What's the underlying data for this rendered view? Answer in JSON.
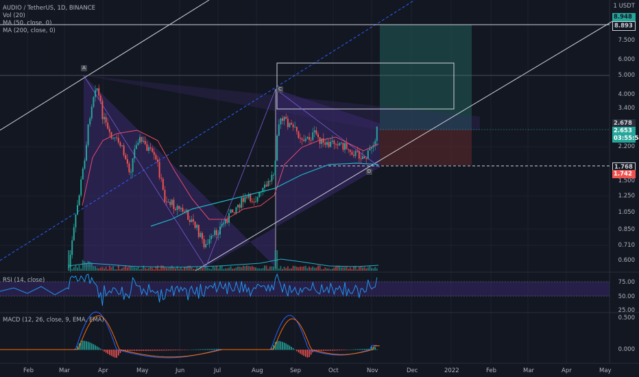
{
  "header": {
    "title": "AUDIO / TetherUS, 1D, BINANCE",
    "vol": "Vol (20)",
    "ma50": "MA (50, close, 0)",
    "ma200": "MA (200, close, 0)"
  },
  "panes": {
    "rsi_label": "RSI (14, close)",
    "macd_label": "MACD (12, 26, close, 9, EMA, EMA)"
  },
  "price_axis": {
    "unit": "1 USDT",
    "ticks": [
      "7.500",
      "6.000",
      "5.000",
      "4.000",
      "3.400",
      "2.200",
      "1.500",
      "1.250",
      "1.050",
      "0.850",
      "0.710",
      "0.600"
    ]
  },
  "price_tags": [
    {
      "value": "8.948",
      "bg": "#26a69a",
      "fg": "#131722"
    },
    {
      "value": "8.893",
      "bg": "#131722",
      "fg": "#d1d4dc",
      "border": "#d1d4dc"
    },
    {
      "value": "2.678",
      "bg": "#2a2e39",
      "fg": "#d1d4dc"
    },
    {
      "value": "2.653",
      "bg": "#26a69a",
      "fg": "#ffffff"
    },
    {
      "value": "03:55:54",
      "bg": "#26a69a",
      "fg": "#ffffff"
    },
    {
      "value": "1.768",
      "bg": "#131722",
      "fg": "#d1d4dc",
      "border": "#d1d4dc"
    },
    {
      "value": "1.742",
      "bg": "#ef5350",
      "fg": "#ffffff"
    }
  ],
  "rsi_axis": [
    "75.00",
    "50.00",
    "25.00"
  ],
  "macd_axis": [
    "0.500",
    "0.000"
  ],
  "time_axis": [
    "Feb",
    "Mar",
    "Apr",
    "May",
    "Jun",
    "Jul",
    "Aug",
    "Sep",
    "Oct",
    "Nov",
    "Dec",
    "2022",
    "Feb",
    "Mar",
    "Apr",
    "May"
  ],
  "markers": [
    "A",
    "C",
    "D"
  ],
  "colors": {
    "up": "#26a69a",
    "down": "#ef5350",
    "ma50": "#e84c6b",
    "ma200": "#20b4c8",
    "rsi": "#2196f3",
    "triangle": "#7b5bd6",
    "long_target": "#1d4c4a",
    "long_stop": "#4a2428"
  }
}
